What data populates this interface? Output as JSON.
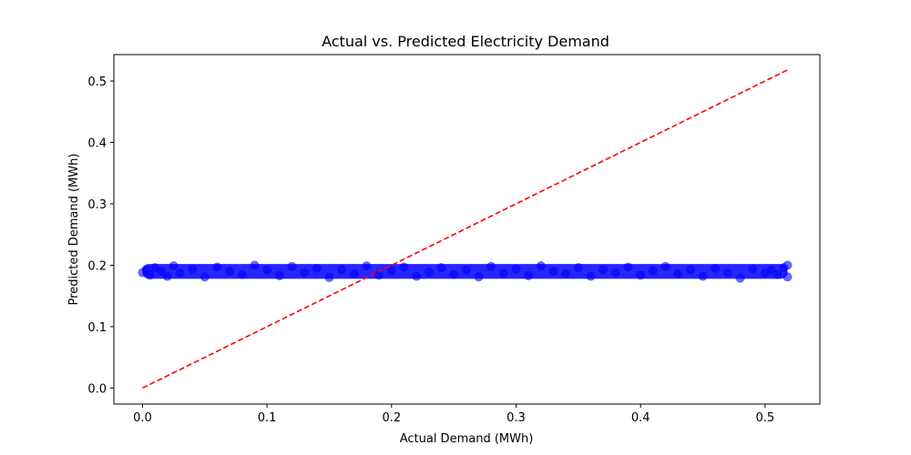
{
  "chart_data": {
    "type": "scatter",
    "title": "Actual vs. Predicted Electricity Demand",
    "xlabel": "Actual Demand (MWh)",
    "ylabel": "Predicted Demand (MWh)",
    "xlim": [
      -0.023,
      0.544
    ],
    "ylim": [
      -0.026,
      0.543
    ],
    "xticks": [
      0.0,
      0.1,
      0.2,
      0.3,
      0.4,
      0.5
    ],
    "yticks": [
      0.0,
      0.1,
      0.2,
      0.3,
      0.4,
      0.5
    ],
    "xtick_labels": [
      "0.0",
      "0.1",
      "0.2",
      "0.3",
      "0.4",
      "0.5"
    ],
    "ytick_labels": [
      "0.0",
      "0.1",
      "0.2",
      "0.3",
      "0.4",
      "0.5"
    ],
    "grid": false,
    "series": [
      {
        "kind": "scatter",
        "color": "#0000ff",
        "opacity": 0.6,
        "x_range": [
          0.0,
          0.518
        ],
        "y_center": 0.19,
        "y_spread": [
          0.178,
          0.202
        ],
        "points": [
          [
            0.0,
            0.188
          ],
          [
            0.003,
            0.193
          ],
          [
            0.006,
            0.184
          ],
          [
            0.01,
            0.196
          ],
          [
            0.015,
            0.19
          ],
          [
            0.02,
            0.182
          ],
          [
            0.025,
            0.199
          ],
          [
            0.03,
            0.187
          ],
          [
            0.04,
            0.194
          ],
          [
            0.05,
            0.181
          ],
          [
            0.06,
            0.197
          ],
          [
            0.07,
            0.19
          ],
          [
            0.08,
            0.185
          ],
          [
            0.09,
            0.2
          ],
          [
            0.1,
            0.192
          ],
          [
            0.11,
            0.183
          ],
          [
            0.12,
            0.198
          ],
          [
            0.13,
            0.188
          ],
          [
            0.14,
            0.195
          ],
          [
            0.15,
            0.18
          ],
          [
            0.16,
            0.193
          ],
          [
            0.17,
            0.186
          ],
          [
            0.18,
            0.199
          ],
          [
            0.19,
            0.184
          ],
          [
            0.2,
            0.191
          ],
          [
            0.21,
            0.197
          ],
          [
            0.22,
            0.182
          ],
          [
            0.23,
            0.189
          ],
          [
            0.24,
            0.196
          ],
          [
            0.25,
            0.185
          ],
          [
            0.26,
            0.192
          ],
          [
            0.27,
            0.181
          ],
          [
            0.28,
            0.198
          ],
          [
            0.29,
            0.187
          ],
          [
            0.3,
            0.194
          ],
          [
            0.31,
            0.183
          ],
          [
            0.32,
            0.199
          ],
          [
            0.33,
            0.19
          ],
          [
            0.34,
            0.186
          ],
          [
            0.35,
            0.196
          ],
          [
            0.36,
            0.182
          ],
          [
            0.37,
            0.193
          ],
          [
            0.38,
            0.188
          ],
          [
            0.39,
            0.197
          ],
          [
            0.4,
            0.184
          ],
          [
            0.41,
            0.191
          ],
          [
            0.42,
            0.198
          ],
          [
            0.43,
            0.186
          ],
          [
            0.44,
            0.193
          ],
          [
            0.45,
            0.182
          ],
          [
            0.46,
            0.195
          ],
          [
            0.47,
            0.188
          ],
          [
            0.48,
            0.179
          ],
          [
            0.49,
            0.194
          ],
          [
            0.5,
            0.187
          ],
          [
            0.505,
            0.192
          ],
          [
            0.51,
            0.185
          ],
          [
            0.515,
            0.196
          ],
          [
            0.518,
            0.2
          ],
          [
            0.518,
            0.181
          ]
        ]
      },
      {
        "kind": "reference-line",
        "style": "dashed",
        "color": "#ff0000",
        "x": [
          0.0,
          0.518
        ],
        "y": [
          0.0,
          0.518
        ]
      }
    ]
  }
}
